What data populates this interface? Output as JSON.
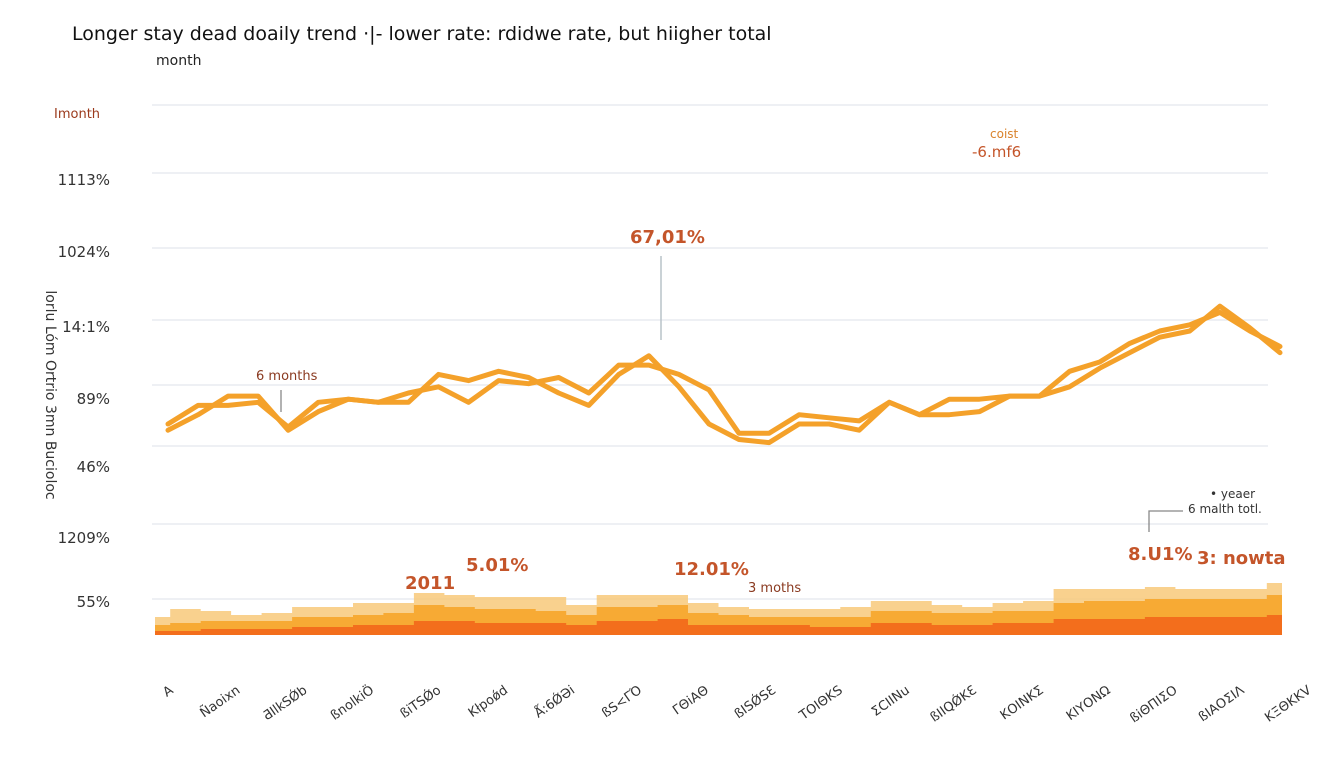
{
  "chart_data": {
    "type": "line",
    "title": "Longer stay dead doaily trend ·|- lower rate: rdidwe rate, but hiigher total",
    "subtitle": "month",
    "unit_label": "Imonth",
    "ylabel": "lorlu Lóm Ortrio 3mn Bucioloc",
    "xlabel": "",
    "ytick_labels": [
      "1113%",
      "1024%",
      "14:1%",
      "89%",
      "46%",
      "1209%",
      "55%"
    ],
    "xtick_labels": [
      "A",
      "Ñaoixn",
      "ƋIlkSǾb",
      "ßnolkiÖ",
      "ßiTSǾo",
      "Kłpoǿd",
      "Ǻ:6ǾƏi",
      "ßS<ΓΌ",
      "ΓΘiΑΘ",
      "ßISǾSƐ",
      "ΤΟΙΘΚS",
      "ƩCIINu",
      "ßIIQǾKƐ",
      "ΚΟIΝΚΣ",
      "ΚΙΥΟΝΩ",
      "ßiΘΠΙΣΟ",
      "ßΙΑΟΣΙΛ",
      "ΚΞΘΚΚV"
    ],
    "grid": true,
    "series": [
      {
        "name": "Line A",
        "color": "#f4a12a",
        "values": [
          60,
          66,
          66,
          67,
          59,
          67,
          68,
          67,
          70,
          72,
          67,
          74,
          73,
          75,
          70,
          79,
          79,
          76,
          71,
          57,
          57,
          63,
          62,
          61,
          67,
          63,
          68,
          68,
          69,
          69,
          77,
          80,
          86,
          90,
          92,
          96,
          90,
          85
        ]
      },
      {
        "name": "Line B",
        "color": "#f4a12a",
        "values": [
          58,
          63,
          69,
          69,
          58,
          64,
          68,
          67,
          67,
          76,
          74,
          77,
          75,
          70,
          66,
          76,
          82,
          72,
          60,
          55,
          54,
          60,
          60,
          58,
          67,
          63,
          63,
          64,
          69,
          69,
          72,
          78,
          83,
          88,
          90,
          98,
          91,
          83
        ]
      }
    ],
    "stacked_area": {
      "type": "area",
      "layers": [
        {
          "name": "Bottom layer",
          "color": "#f26a1b",
          "values": [
            2,
            2,
            3,
            3,
            3,
            4,
            4,
            5,
            5,
            7,
            7,
            6,
            6,
            6,
            5,
            7,
            7,
            8,
            5,
            5,
            5,
            5,
            4,
            4,
            6,
            6,
            5,
            5,
            6,
            6,
            8,
            8,
            8,
            9,
            9,
            9,
            9,
            10
          ]
        },
        {
          "name": "Middle layer",
          "color": "#f7a82f",
          "values": [
            3,
            4,
            4,
            4,
            4,
            5,
            5,
            5,
            6,
            8,
            7,
            7,
            7,
            6,
            5,
            7,
            7,
            7,
            6,
            5,
            4,
            4,
            5,
            5,
            6,
            6,
            6,
            6,
            6,
            6,
            8,
            9,
            9,
            9,
            9,
            9,
            9,
            10
          ]
        },
        {
          "name": "Top layer",
          "color": "#f8c97a",
          "values": [
            4,
            7,
            5,
            3,
            4,
            5,
            5,
            6,
            5,
            6,
            6,
            6,
            6,
            7,
            5,
            6,
            6,
            5,
            5,
            4,
            4,
            4,
            4,
            5,
            5,
            5,
            4,
            3,
            4,
            5,
            7,
            6,
            6,
            6,
            5,
            5,
            5,
            6
          ]
        }
      ]
    },
    "annotations": {
      "peak_value": "67,01%",
      "six_months": "6 months",
      "cost_label": "coist",
      "cost_value": "-6.mf6",
      "year_note": "• yeaer",
      "six_month_total": "6 malth totl.",
      "right_value": "8.U1%",
      "right_label": "3: nowta",
      "year_2011": "2011",
      "mid_value_1": "5.01%",
      "mid_value_2": "12.01%",
      "three_months": "3 moths"
    }
  }
}
